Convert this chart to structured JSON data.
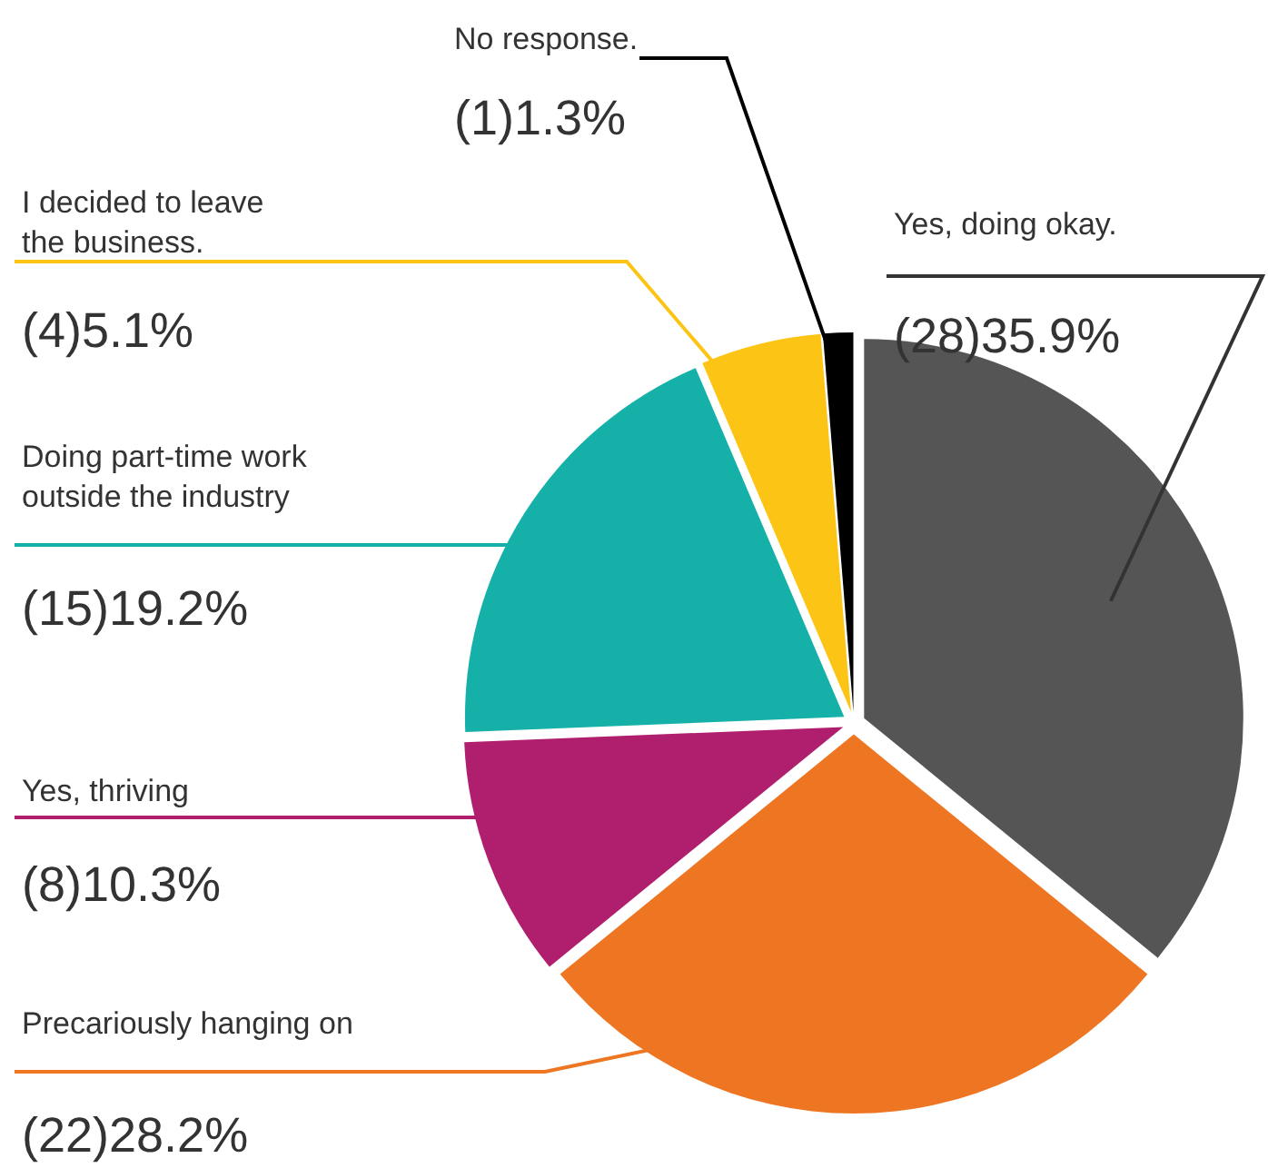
{
  "chart_data": {
    "type": "pie",
    "categories": [
      "Yes, doing okay.",
      "Precariously hanging on",
      "Yes, thriving",
      "Doing part-time work outside the industry",
      "I decided to leave the business.",
      "No response."
    ],
    "values": [
      28,
      22,
      8,
      15,
      4,
      1
    ],
    "value_labels": [
      "(28)35.9%",
      "(22)28.2%",
      "(8)10.3%",
      "(15)19.2%",
      "(4)5.1%",
      "(1)1.3%"
    ],
    "colors": [
      "#555555",
      "#ee7623",
      "#b01f6e",
      "#15b0a8",
      "#fcc415",
      "#000000"
    ],
    "legend": false
  }
}
